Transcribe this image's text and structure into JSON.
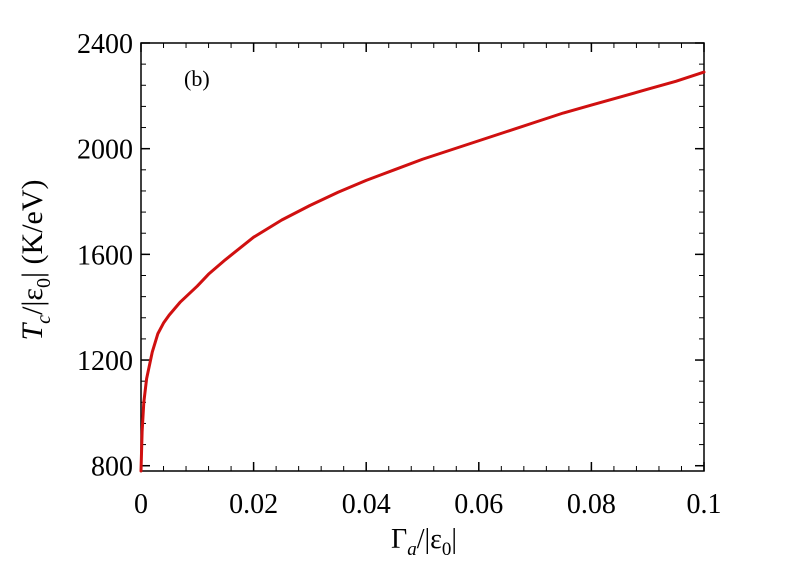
{
  "chart_data": {
    "type": "line",
    "panel_label": "(b)",
    "xlabel": {
      "main": "Γ",
      "sub": "a",
      "after": "/|ε",
      "sub2": "0",
      "end": "|"
    },
    "ylabel": {
      "main": "T",
      "sub": "c",
      "after": "/|ε",
      "sub2": "0",
      "end": "| (K/eV)"
    },
    "xlim": [
      0,
      0.1
    ],
    "ylim": [
      780,
      2400
    ],
    "x_ticks": [
      0,
      0.02,
      0.04,
      0.06,
      0.08,
      0.1
    ],
    "x_tick_labels": [
      "0",
      "0.02",
      "0.04",
      "0.06",
      "0.08",
      "0.1"
    ],
    "y_ticks": [
      800,
      1200,
      1600,
      2000,
      2400
    ],
    "y_tick_labels": [
      "800",
      "1200",
      "1600",
      "2000",
      "2400"
    ],
    "grid": false,
    "legend": "none",
    "series": [
      {
        "color": "#d01010",
        "x": [
          0,
          0.0002,
          0.0005,
          0.001,
          0.002,
          0.003,
          0.004,
          0.005,
          0.007,
          0.01,
          0.012,
          0.015,
          0.02,
          0.025,
          0.03,
          0.035,
          0.04,
          0.045,
          0.05,
          0.055,
          0.06,
          0.065,
          0.07,
          0.075,
          0.08,
          0.085,
          0.09,
          0.095,
          0.1
        ],
        "y": [
          780,
          930,
          1040,
          1130,
          1230,
          1300,
          1340,
          1370,
          1420,
          1480,
          1525,
          1580,
          1665,
          1730,
          1785,
          1835,
          1880,
          1920,
          1960,
          1995,
          2030,
          2065,
          2100,
          2135,
          2165,
          2195,
          2225,
          2255,
          2290
        ]
      }
    ]
  }
}
